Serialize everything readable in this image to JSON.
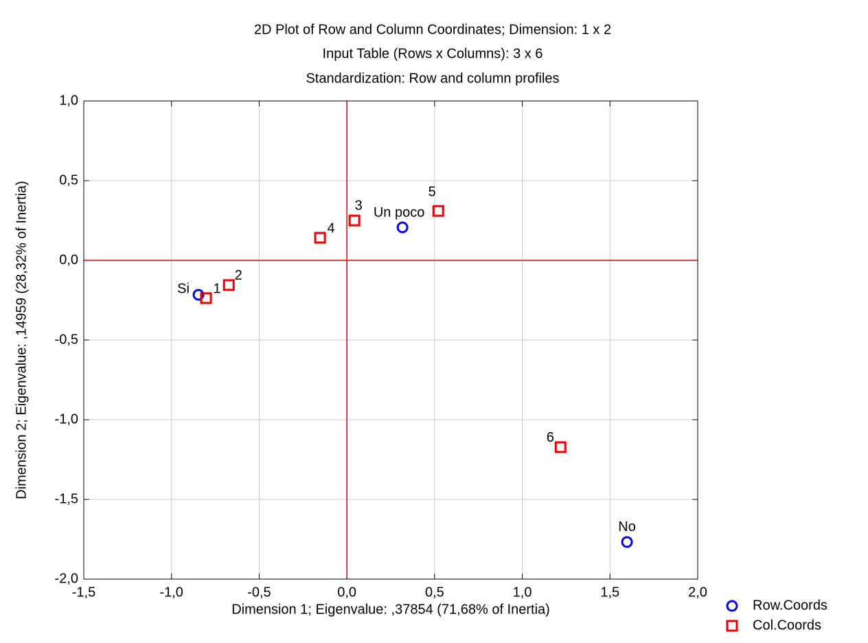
{
  "chart_data": {
    "type": "scatter",
    "title": "2D Plot of Row and Column Coordinates; Dimension:  1 x 2",
    "subtitle": [
      "Input Table (Rows x Columns): 3 x 6",
      "Standardization: Row and column profiles"
    ],
    "x_label": "Dimension 1; Eigenvalue: ,37854 (71,68% of Inertia)",
    "y_label": "Dimension 2; Eigenvalue: ,14959 (28,32% of Inertia)",
    "xlim": [
      -1.5,
      2.0
    ],
    "ylim": [
      -2.0,
      1.0
    ],
    "xticks": [
      {
        "value": -1.5,
        "label": "-1,5"
      },
      {
        "value": -1.0,
        "label": "-1,0"
      },
      {
        "value": -0.5,
        "label": "-0,5"
      },
      {
        "value": 0,
        "label": "0,0"
      },
      {
        "value": 0.5,
        "label": "0,5"
      },
      {
        "value": 1.0,
        "label": "1,0"
      },
      {
        "value": 1.5,
        "label": "1,5"
      },
      {
        "value": 2.0,
        "label": "2,0"
      }
    ],
    "yticks": [
      {
        "value": -2.0,
        "label": "-2,0"
      },
      {
        "value": -1.5,
        "label": "-1,5"
      },
      {
        "value": -1.0,
        "label": "-1,0"
      },
      {
        "value": -0.5,
        "label": "-0,5"
      },
      {
        "value": 0,
        "label": "0,0"
      },
      {
        "value": 0.5,
        "label": "0,5"
      },
      {
        "value": 1.0,
        "label": "1,0"
      }
    ],
    "grid": true,
    "legend": "bottom-right",
    "series": [
      {
        "name": "Row.Coords",
        "color": "#0000ee",
        "marker": "circle",
        "labels": [
          "Si",
          "Un poco",
          "No"
        ],
        "x": [
          -0.846,
          0.317,
          1.597
        ],
        "values": [
          -0.216,
          0.207,
          -1.767
        ]
      },
      {
        "name": "Col.Coords",
        "color": "#ee0000",
        "marker": "square",
        "labels": [
          "1",
          "2",
          "3",
          "4",
          "5",
          "6"
        ],
        "x": [
          -0.803,
          -0.673,
          0.043,
          -0.153,
          0.521,
          1.218
        ],
        "values": [
          -0.237,
          -0.155,
          0.25,
          0.142,
          0.31,
          -1.172
        ]
      }
    ]
  }
}
